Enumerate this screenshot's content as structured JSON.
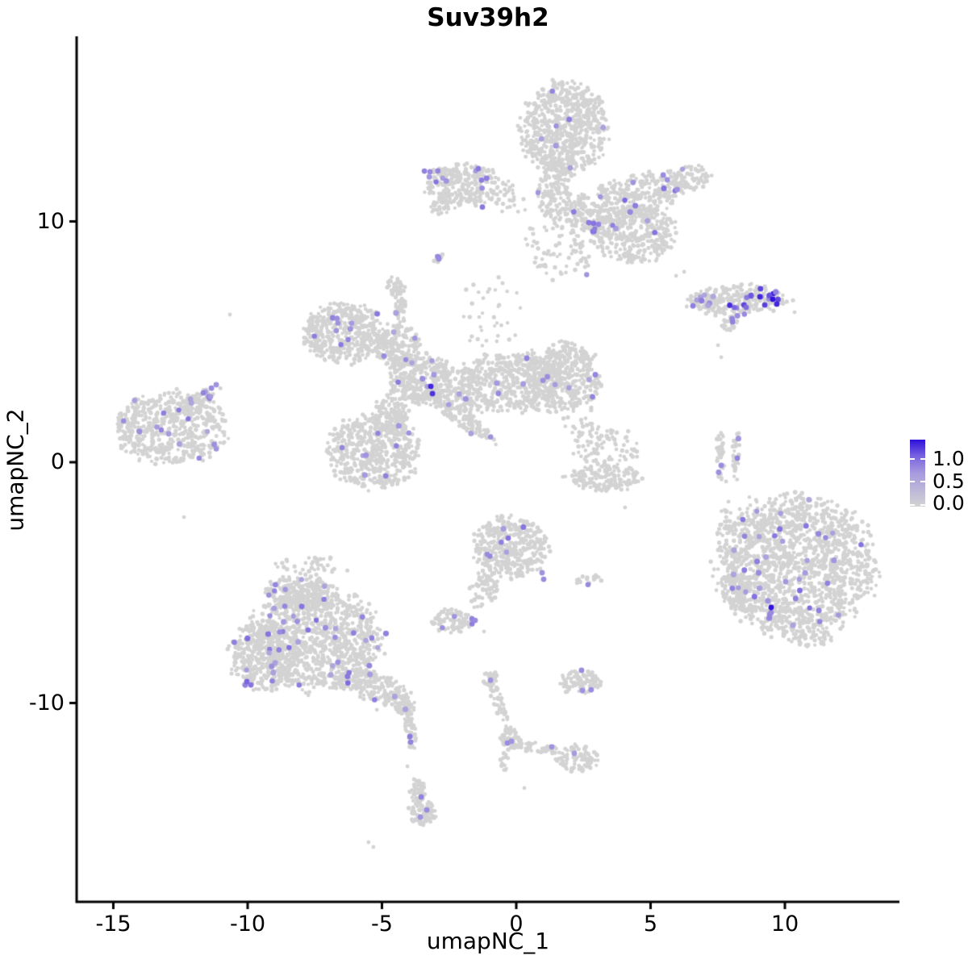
{
  "title": "Suv39h2",
  "axes": {
    "x_label": "umapNC_1",
    "y_label": "umapNC_2",
    "x_ticks": [
      "-15",
      "-10",
      "-5",
      "0",
      "5",
      "10"
    ],
    "x_tick_values": [
      -15,
      -10,
      -5,
      0,
      5,
      10
    ],
    "y_ticks": [
      "10",
      "0",
      "-10"
    ],
    "y_tick_values": [
      10,
      0,
      -10
    ]
  },
  "legend": {
    "labels": [
      "1.0",
      "0.5",
      "0.0"
    ],
    "tick_values": [
      1.0,
      0.5,
      0.0
    ],
    "color_low": "#d3d3d3",
    "color_mid": "#a79ade",
    "color_midhigh": "#7b64df",
    "color_high": "#2c0fdb",
    "max_value": 1.4
  },
  "chart_data": {
    "type": "scatter",
    "title": "Suv39h2",
    "xlabel": "umapNC_1",
    "ylabel": "umapNC_2",
    "xlim": [
      -16.4,
      14.3
    ],
    "ylim": [
      -18.3,
      17.7
    ],
    "grid": false,
    "legend_position": "right",
    "point_color_low": "#d3d3d3",
    "point_color_high": "#2c0fdb",
    "seed": 7,
    "clusters": [
      {
        "name": "top-head",
        "cx": 1.8,
        "cy": 13.84,
        "rx": 1.56,
        "ry": 1.84,
        "angle": 0,
        "n": 700,
        "expr": 7,
        "expr_range": [
          0.6,
          1.0
        ]
      },
      {
        "name": "top-neck",
        "cx": 1.41,
        "cy": 11.32,
        "rx": 0.6,
        "ry": 1.34,
        "angle": 0,
        "n": 140,
        "expr": 1,
        "expr_range": [
          0.6,
          0.9
        ]
      },
      {
        "name": "top-right-arm",
        "cx": 3.9,
        "cy": 10.75,
        "rx": 2.34,
        "ry": 0.94,
        "angle": 20,
        "n": 420,
        "expr": 8,
        "expr_range": [
          0.6,
          1.05
        ]
      },
      {
        "name": "arm-tip",
        "cx": 6.46,
        "cy": 11.83,
        "rx": 0.81,
        "ry": 0.57,
        "angle": 0,
        "n": 90,
        "expr": 2,
        "expr_range": [
          0.6,
          0.9
        ]
      },
      {
        "name": "top-lower-lobe",
        "cx": 4.44,
        "cy": 9.45,
        "rx": 1.56,
        "ry": 1.11,
        "angle": 0,
        "n": 330,
        "expr": 6,
        "expr_range": [
          0.6,
          1.05
        ]
      },
      {
        "name": "top-speckle",
        "cx": 1.8,
        "cy": 9.15,
        "rx": 1.35,
        "ry": 1.5,
        "angle": 0,
        "n": 90,
        "expr": 2,
        "expr_range": [
          0.6,
          0.9
        ]
      },
      {
        "name": "top-bridge",
        "cx": -0.3,
        "cy": 10.99,
        "rx": 0.75,
        "ry": 0.67,
        "angle": 0,
        "n": 30,
        "expr": 0,
        "expr_range": [
          0.6,
          0.9
        ]
      },
      {
        "name": "mid-speckle",
        "cx": -0.9,
        "cy": 6.3,
        "rx": 1.2,
        "ry": 1.51,
        "angle": 0,
        "n": 35,
        "expr": 0,
        "expr_range": [
          0.6,
          0.9
        ]
      },
      {
        "name": "top-left-blob",
        "cx": -2.01,
        "cy": 11.49,
        "rx": 1.41,
        "ry": 0.9,
        "angle": 0,
        "n": 260,
        "expr": 11,
        "expr_range": [
          0.6,
          1.0
        ]
      },
      {
        "name": "top-left-stub",
        "cx": -2.85,
        "cy": 10.59,
        "rx": 0.36,
        "ry": 0.34,
        "angle": 0,
        "n": 30,
        "expr": 0,
        "expr_range": [
          0.6,
          0.9
        ]
      },
      {
        "name": "tiny-mid",
        "cx": -2.85,
        "cy": 8.44,
        "rx": 0.21,
        "ry": 0.2,
        "angle": 0,
        "n": 8,
        "expr": 2,
        "expr_range": [
          0.7,
          0.9
        ]
      },
      {
        "name": "small-blob",
        "cx": -4.5,
        "cy": 7.3,
        "rx": 0.33,
        "ry": 0.44,
        "angle": 0,
        "n": 45,
        "expr": 0,
        "expr_range": [
          0.6,
          0.9
        ]
      },
      {
        "name": "small-strand",
        "cx": -4.32,
        "cy": 6.3,
        "rx": 0.21,
        "ry": 0.6,
        "angle": 0,
        "n": 35,
        "expr": 1,
        "expr_range": [
          0.6,
          0.8
        ]
      },
      {
        "name": "fish-left-smear",
        "cx": 6.97,
        "cy": 6.73,
        "rx": 0.51,
        "ry": 0.3,
        "angle": 0,
        "n": 35,
        "expr": 6,
        "expr_range": [
          0.5,
          0.85
        ]
      },
      {
        "name": "fish-body",
        "cx": 8.26,
        "cy": 6.73,
        "rx": 1.86,
        "ry": 0.6,
        "angle": 3,
        "n": 210,
        "expr": 16,
        "expr_range": [
          0.75,
          1.35
        ]
      },
      {
        "name": "fish-tail",
        "cx": 7.99,
        "cy": 5.76,
        "rx": 0.39,
        "ry": 0.3,
        "angle": 40,
        "n": 25,
        "expr": 2,
        "expr_range": [
          0.6,
          0.9
        ]
      },
      {
        "name": "star-nw-lobe",
        "cx": -6.37,
        "cy": 5.36,
        "rx": 1.5,
        "ry": 1.21,
        "angle": 0,
        "n": 420,
        "expr": 10,
        "expr_range": [
          0.55,
          0.95
        ]
      },
      {
        "name": "star-n-blob",
        "cx": -4.44,
        "cy": 4.86,
        "rx": 0.84,
        "ry": 0.87,
        "angle": 0,
        "n": 200,
        "expr": 4,
        "expr_range": [
          0.55,
          0.95
        ]
      },
      {
        "name": "star-center",
        "cx": -3.54,
        "cy": 3.45,
        "rx": 1.14,
        "ry": 1.01,
        "angle": 0,
        "n": 340,
        "expr": 6,
        "expr_range": [
          0.55,
          0.95
        ]
      },
      {
        "name": "star-e-arm",
        "cx": -0.3,
        "cy": 3.28,
        "rx": 2.25,
        "ry": 1.21,
        "angle": 7,
        "n": 560,
        "expr": 8,
        "expr_range": [
          0.55,
          0.95
        ]
      },
      {
        "name": "star-e-lobe",
        "cx": 1.8,
        "cy": 3.52,
        "rx": 1.32,
        "ry": 1.41,
        "angle": 0,
        "n": 380,
        "expr": 5,
        "expr_range": [
          0.55,
          0.95
        ]
      },
      {
        "name": "star-sw-lobe",
        "cx": -5.35,
        "cy": 0.44,
        "rx": 1.65,
        "ry": 1.47,
        "angle": 0,
        "n": 520,
        "expr": 8,
        "expr_range": [
          0.55,
          0.95
        ]
      },
      {
        "name": "star-s-strand",
        "cx": -2.01,
        "cy": 1.84,
        "rx": 1.56,
        "ry": 0.34,
        "angle": -40,
        "n": 130,
        "expr": 3,
        "expr_range": [
          0.6,
          0.95
        ]
      },
      {
        "name": "star-neck",
        "cx": -4.65,
        "cy": 1.94,
        "rx": 0.66,
        "ry": 0.84,
        "angle": 0,
        "n": 110,
        "expr": 1,
        "expr_range": [
          0.55,
          0.9
        ]
      },
      {
        "name": "left-blob",
        "cx": -12.85,
        "cy": 1.37,
        "rx": 1.98,
        "ry": 1.47,
        "angle": 0,
        "n": 520,
        "expr": 16,
        "expr_range": [
          0.55,
          0.95
        ]
      },
      {
        "name": "left-arm",
        "cx": -11.8,
        "cy": 2.61,
        "rx": 0.84,
        "ry": 0.3,
        "angle": 35,
        "n": 60,
        "expr": 4,
        "expr_range": [
          0.6,
          0.95
        ]
      },
      {
        "name": "sliver-1",
        "cx": 7.6,
        "cy": 0.27,
        "rx": 0.15,
        "ry": 1.14,
        "angle": 0,
        "n": 40,
        "expr": 1,
        "expr_range": [
          0.7,
          0.9
        ]
      },
      {
        "name": "sliver-2",
        "cx": 8.2,
        "cy": 0.2,
        "rx": 0.15,
        "ry": 1.07,
        "angle": 0,
        "n": 35,
        "expr": 1,
        "expr_range": [
          0.7,
          0.9
        ]
      },
      {
        "name": "wedge-top",
        "cx": 3.3,
        "cy": 0.6,
        "rx": 1.2,
        "ry": 0.84,
        "angle": 0,
        "n": 90,
        "expr": 0,
        "expr_range": [
          0.6,
          0.9
        ]
      },
      {
        "name": "wedge-bottom",
        "cx": 3.24,
        "cy": -0.64,
        "rx": 1.35,
        "ry": 0.54,
        "angle": 0,
        "n": 160,
        "expr": 0,
        "expr_range": [
          0.6,
          0.9
        ]
      },
      {
        "name": "wedge-sparse",
        "cx": 2.4,
        "cy": 1.78,
        "rx": 0.6,
        "ry": 0.67,
        "angle": 0,
        "n": 25,
        "expr": 0,
        "expr_range": [
          0.6,
          0.9
        ]
      },
      {
        "name": "right-big",
        "cx": 10.42,
        "cy": -4.36,
        "rx": 2.79,
        "ry": 2.85,
        "angle": 0,
        "n": 1500,
        "expr": 40,
        "expr_range": [
          0.55,
          1.0
        ]
      },
      {
        "name": "right-big-west1",
        "cx": 7.87,
        "cy": -3.32,
        "rx": 0.54,
        "ry": 1.01,
        "angle": 0,
        "n": 50,
        "expr": 1,
        "expr_range": [
          0.55,
          0.9
        ]
      },
      {
        "name": "right-big-west2",
        "cx": 8.23,
        "cy": -5.26,
        "rx": 0.48,
        "ry": 0.74,
        "angle": 0,
        "n": 60,
        "expr": 1,
        "expr_range": [
          0.55,
          0.9
        ]
      },
      {
        "name": "right-big-halo",
        "cx": 8.56,
        "cy": -2.24,
        "rx": 1.05,
        "ry": 0.94,
        "angle": 0,
        "n": 35,
        "expr": 0,
        "expr_range": [
          0.55,
          0.9
        ]
      },
      {
        "name": "right-big-hook",
        "cx": 11.11,
        "cy": -7.34,
        "rx": 0.66,
        "ry": 0.34,
        "angle": 0,
        "n": 40,
        "expr": 0,
        "expr_range": [
          0.55,
          0.9
        ]
      },
      {
        "name": "center-bottom-pear",
        "cx": -0.24,
        "cy": -3.52,
        "rx": 1.32,
        "ry": 1.27,
        "angle": 0,
        "n": 380,
        "expr": 5,
        "expr_range": [
          0.6,
          1.0
        ]
      },
      {
        "name": "pear-arm",
        "cx": -1.2,
        "cy": -5.26,
        "rx": 0.48,
        "ry": 0.87,
        "angle": -17,
        "n": 70,
        "expr": 0,
        "expr_range": [
          0.6,
          0.9
        ]
      },
      {
        "name": "pear-right-strand",
        "cx": 2.7,
        "cy": -4.89,
        "rx": 0.48,
        "ry": 0.23,
        "angle": 0,
        "n": 18,
        "expr": 1,
        "expr_range": [
          0.6,
          0.85
        ]
      },
      {
        "name": "small-oval",
        "cx": -2.34,
        "cy": -6.6,
        "rx": 0.78,
        "ry": 0.5,
        "angle": 0,
        "n": 85,
        "expr": 3,
        "expr_range": [
          0.6,
          0.9
        ]
      },
      {
        "name": "bottomleft-main",
        "cx": -7.45,
        "cy": -7.34,
        "rx": 2.34,
        "ry": 2.08,
        "angle": 0,
        "n": 950,
        "expr": 30,
        "expr_range": [
          0.55,
          1.0
        ]
      },
      {
        "name": "bottomleft-west",
        "cx": -9.37,
        "cy": -8.01,
        "rx": 1.26,
        "ry": 1.41,
        "angle": 0,
        "n": 380,
        "expr": 12,
        "expr_range": [
          0.55,
          1.0
        ]
      },
      {
        "name": "bottomleft-top",
        "cx": -8.05,
        "cy": -5.49,
        "rx": 1.35,
        "ry": 0.74,
        "angle": 0,
        "n": 220,
        "expr": 6,
        "expr_range": [
          0.55,
          0.95
        ]
      },
      {
        "name": "bottomleft-tail",
        "cx": -5.35,
        "cy": -9.31,
        "rx": 1.56,
        "ry": 0.57,
        "angle": -20,
        "n": 220,
        "expr": 4,
        "expr_range": [
          0.55,
          0.95
        ]
      },
      {
        "name": "bottomleft-tip",
        "cx": -4.14,
        "cy": -10.18,
        "rx": 0.36,
        "ry": 0.27,
        "angle": 0,
        "n": 30,
        "expr": 1,
        "expr_range": [
          0.6,
          0.9
        ]
      },
      {
        "name": "bottomleft-sparse",
        "cx": -7.81,
        "cy": -4.32,
        "rx": 1.5,
        "ry": 0.4,
        "angle": 0,
        "n": 40,
        "expr": 0,
        "expr_range": [
          0.6,
          0.9
        ]
      },
      {
        "name": "small-round",
        "cx": 2.4,
        "cy": -9.15,
        "rx": 0.78,
        "ry": 0.5,
        "angle": 0,
        "n": 95,
        "expr": 0,
        "expr_range": [
          0.6,
          0.95
        ]
      },
      {
        "name": "pill",
        "cx": -3.96,
        "cy": -10.89,
        "rx": 0.21,
        "ry": 1.01,
        "angle": 8,
        "n": 55,
        "expr": 0,
        "expr_range": [
          0.8,
          0.95
        ]
      },
      {
        "name": "bottom-pill-top",
        "cx": -3.66,
        "cy": -13.7,
        "rx": 0.27,
        "ry": 0.54,
        "angle": 0,
        "n": 50,
        "expr": 0,
        "expr_range": [
          0.6,
          0.9
        ]
      },
      {
        "name": "bottom-pill-foot",
        "cx": -3.51,
        "cy": -14.57,
        "rx": 0.48,
        "ry": 0.47,
        "angle": 0,
        "n": 80,
        "expr": 0,
        "expr_range": [
          0.6,
          0.9
        ]
      },
      {
        "name": "y-top-blob",
        "cx": -0.96,
        "cy": -8.98,
        "rx": 0.27,
        "ry": 0.3,
        "angle": 0,
        "n": 30,
        "expr": 0,
        "expr_range": [
          0.7,
          0.9
        ]
      },
      {
        "name": "y-strand",
        "cx": -0.66,
        "cy": -10.02,
        "rx": 0.21,
        "ry": 0.94,
        "angle": 18,
        "n": 45,
        "expr": 0,
        "expr_range": [
          0.6,
          0.9
        ]
      },
      {
        "name": "y-junction",
        "cx": -0.21,
        "cy": -11.49,
        "rx": 0.36,
        "ry": 0.47,
        "angle": 0,
        "n": 60,
        "expr": 0,
        "expr_range": [
          0.6,
          0.9
        ]
      },
      {
        "name": "y-right-arm",
        "cx": 0.84,
        "cy": -11.89,
        "rx": 0.84,
        "ry": 0.2,
        "angle": -8,
        "n": 45,
        "expr": 0,
        "expr_range": [
          0.6,
          0.9
        ]
      },
      {
        "name": "y-end-blob",
        "cx": 2.28,
        "cy": -12.29,
        "rx": 0.78,
        "ry": 0.54,
        "angle": 0,
        "n": 90,
        "expr": 0,
        "expr_range": [
          0.6,
          0.9
        ]
      },
      {
        "name": "y-stub",
        "cx": -0.45,
        "cy": -12.46,
        "rx": 0.18,
        "ry": 0.34,
        "angle": 0,
        "n": 15,
        "expr": 0,
        "expr_range": [
          0.6,
          0.9
        ]
      }
    ],
    "extra_points": [
      {
        "x": 9.07,
        "y": 6.87,
        "value": 1.3
      },
      {
        "x": 9.55,
        "y": 6.77,
        "value": 1.38
      },
      {
        "x": 9.7,
        "y": 6.57,
        "value": 1.3
      },
      {
        "x": 9.25,
        "y": 6.53,
        "value": 1.2
      },
      {
        "x": 8.74,
        "y": 6.93,
        "value": 1.1
      },
      {
        "x": 8.56,
        "y": 6.43,
        "value": 1.0
      },
      {
        "x": 8.05,
        "y": 5.83,
        "value": 0.85
      },
      {
        "x": -3.18,
        "y": 3.15,
        "value": 1.3
      },
      {
        "x": -3.12,
        "y": 2.85,
        "value": 1.25
      },
      {
        "x": 9.49,
        "y": -6.03,
        "value": 1.38
      },
      {
        "x": -10.03,
        "y": -9.11,
        "value": 1.05
      },
      {
        "x": -9.88,
        "y": -9.25,
        "value": 0.95
      },
      {
        "x": -3.96,
        "y": -11.39,
        "value": 0.9
      },
      {
        "x": -3.93,
        "y": -11.62,
        "value": 0.85
      },
      {
        "x": -3.42,
        "y": 12.09,
        "value": 0.85
      },
      {
        "x": -3.21,
        "y": 12.06,
        "value": 0.8
      },
      {
        "x": 5.47,
        "y": 11.93,
        "value": 0.8
      },
      {
        "x": 5.62,
        "y": 11.73,
        "value": 0.75
      },
      {
        "x": 2.7,
        "y": 9.95,
        "value": 0.9
      },
      {
        "x": 2.88,
        "y": 9.92,
        "value": 0.95
      },
      {
        "x": 3.06,
        "y": 9.88,
        "value": 0.85
      },
      {
        "x": -0.3,
        "y": -3.15,
        "value": 0.95
      },
      {
        "x": -1.08,
        "y": -3.82,
        "value": 0.8
      },
      {
        "x": 0.96,
        "y": -4.59,
        "value": 0.75
      },
      {
        "x": 1.02,
        "y": -4.86,
        "value": 0.8
      },
      {
        "x": -1.65,
        "y": -6.5,
        "value": 0.85
      },
      {
        "x": -1.53,
        "y": -6.57,
        "value": 0.8
      },
      {
        "x": 2.43,
        "y": -8.64,
        "value": 0.8
      },
      {
        "x": 2.46,
        "y": -9.48,
        "value": 0.75
      },
      {
        "x": 2.79,
        "y": -9.45,
        "value": 0.8
      },
      {
        "x": -3.54,
        "y": -13.9,
        "value": 0.85
      },
      {
        "x": -3.33,
        "y": -14.44,
        "value": 0.8
      },
      {
        "x": -3.57,
        "y": -14.74,
        "value": 0.75
      },
      {
        "x": -0.96,
        "y": -9.05,
        "value": 0.75
      },
      {
        "x": -0.33,
        "y": -11.66,
        "value": 0.8
      },
      {
        "x": -0.18,
        "y": -11.59,
        "value": 0.75
      },
      {
        "x": 1.32,
        "y": -11.82,
        "value": 0.75
      },
      {
        "x": 2.16,
        "y": -12.09,
        "value": 0.7
      },
      {
        "x": 7.63,
        "y": -0.13,
        "value": 0.8
      },
      {
        "x": 8.23,
        "y": 0.17,
        "value": 0.85
      },
      {
        "x": -2.88,
        "y": 8.44,
        "value": 0.8
      },
      {
        "x": -11.65,
        "y": 2.88,
        "value": 0.85
      },
      {
        "x": -11.35,
        "y": 3.08,
        "value": 0.8
      },
      {
        "x": -11.17,
        "y": 3.22,
        "value": 0.75
      }
    ],
    "stray_points": [
      [
        -10.66,
        6.13
      ],
      [
        4.05,
        -1.88
      ],
      [
        7.81,
        -0.8
      ],
      [
        7.9,
        -1.64
      ],
      [
        8.62,
        -2.24
      ],
      [
        -12.37,
        -2.28
      ],
      [
        -5.5,
        -15.78
      ],
      [
        -5.32,
        -15.98
      ],
      [
        0.3,
        -13.53
      ],
      [
        7.51,
        4.86
      ],
      [
        7.63,
        4.36
      ],
      [
        5.95,
        7.74
      ],
      [
        6.25,
        7.91
      ],
      [
        10.36,
        6.23
      ],
      [
        -1.44,
        -6.0
      ],
      [
        -1.2,
        -7.03
      ],
      [
        -4.86,
        -9.65
      ],
      [
        -5.19,
        -10.28
      ],
      [
        -4.05,
        -12.63
      ]
    ]
  }
}
